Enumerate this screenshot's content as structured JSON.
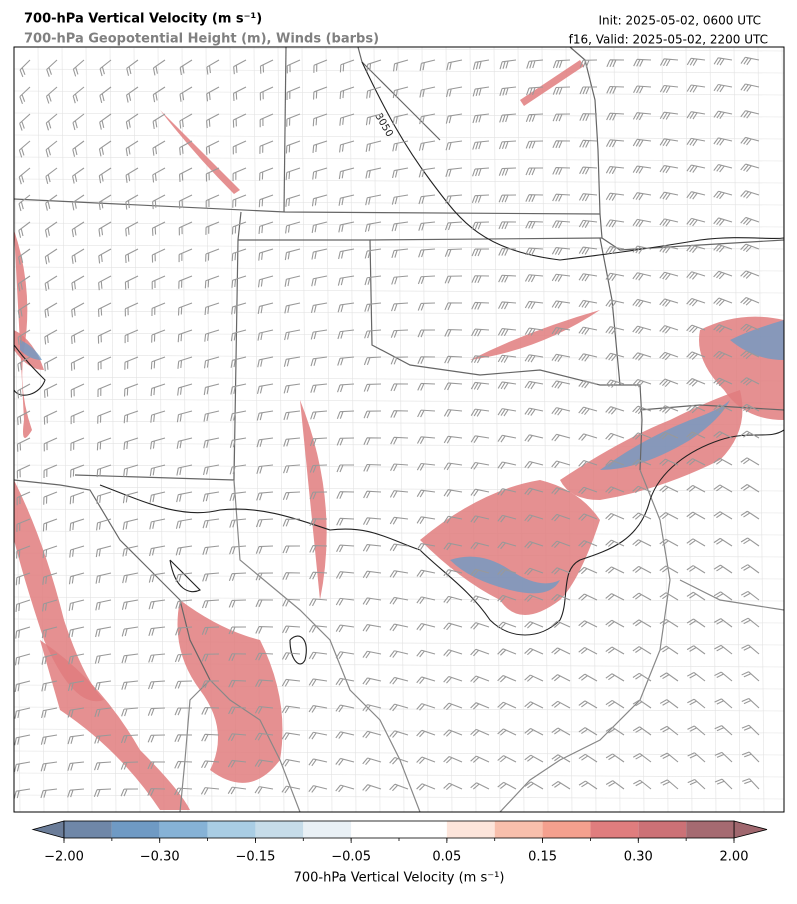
{
  "header": {
    "title": "700-hPa Vertical Velocity (m s⁻¹)",
    "subtitle": "700-hPa Geopotential Height (m), Winds (barbs)",
    "init": "Init: 2025-05-02, 0600 UTC",
    "valid": "f16, Valid: 2025-05-02, 2200 UTC"
  },
  "map": {
    "contour_label": "3050"
  },
  "colorbar": {
    "label": "700-hPa Vertical Velocity (m s⁻¹)",
    "levels": [
      -2,
      -1,
      -0.3,
      -0.2,
      -0.15,
      -0.1,
      -0.05,
      0,
      0.05,
      0.1,
      0.15,
      0.2,
      0.3,
      1,
      2
    ],
    "colors": [
      "#6f87a8",
      "#6f9ac4",
      "#86b2d6",
      "#a9cde4",
      "#c6dce9",
      "#e9f0f5",
      "#ffffff",
      "#ffffff",
      "#fde5db",
      "#f8bfac",
      "#f4a08e",
      "#e07d7e",
      "#cc7176",
      "#a56a71"
    ],
    "under_color": "#6b7d99",
    "over_color": "#a0676e",
    "ticks": [
      {
        "value": -2,
        "label": "−2.00"
      },
      {
        "value": -0.3,
        "label": "−0.30"
      },
      {
        "value": -0.15,
        "label": "−0.15"
      },
      {
        "value": -0.05,
        "label": "−0.05"
      },
      {
        "value": 0.05,
        "label": "0.05"
      },
      {
        "value": 0.15,
        "label": "0.15"
      },
      {
        "value": 0.3,
        "label": "0.30"
      },
      {
        "value": 2,
        "label": "2.00"
      }
    ]
  }
}
